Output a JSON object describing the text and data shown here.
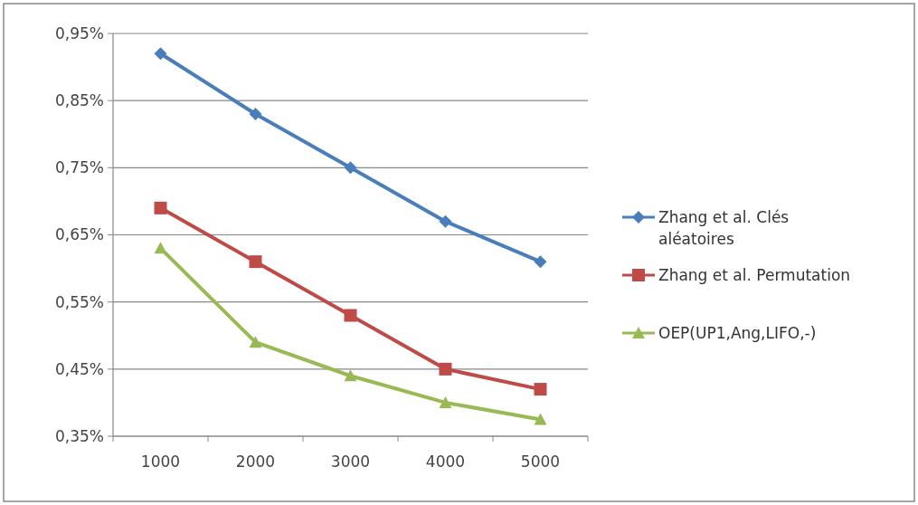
{
  "chart_data": {
    "type": "line",
    "categories": [
      "1000",
      "2000",
      "3000",
      "4000",
      "5000"
    ],
    "series": [
      {
        "name": "Zhang et al. Clés aléatoires",
        "color": "#4a7ebb",
        "marker": "diamond",
        "values": [
          0.92,
          0.83,
          0.75,
          0.67,
          0.61
        ]
      },
      {
        "name": "Zhang et al. Permutation",
        "color": "#be4b48",
        "marker": "square",
        "values": [
          0.69,
          0.61,
          0.53,
          0.45,
          0.42
        ]
      },
      {
        "name": "OEP(UP1,Ang,LIFO,-)",
        "color": "#98b954",
        "marker": "triangle",
        "values": [
          0.63,
          0.49,
          0.44,
          0.4,
          0.375
        ]
      }
    ],
    "ylim": [
      0.35,
      0.95
    ],
    "yticks": [
      {
        "value": 0.35,
        "label": "0,35%"
      },
      {
        "value": 0.45,
        "label": "0,45%"
      },
      {
        "value": 0.55,
        "label": "0,55%"
      },
      {
        "value": 0.65,
        "label": "0,65%"
      },
      {
        "value": 0.75,
        "label": "0,75%"
      },
      {
        "value": 0.85,
        "label": "0,85%"
      },
      {
        "value": 0.95,
        "label": "0,95%"
      }
    ],
    "grid": "y",
    "legend": "right",
    "line_style": "solid"
  }
}
